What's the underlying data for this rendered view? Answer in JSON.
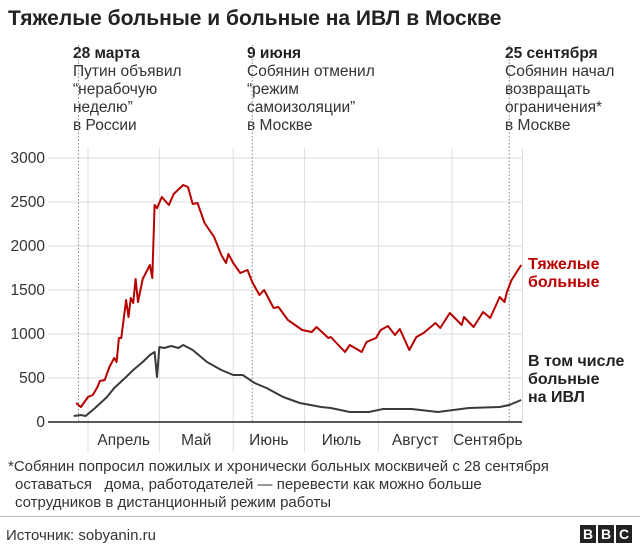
{
  "title": "Тяжелые больные и больные на ИВЛ в Москве",
  "annotations": [
    {
      "date": "28 марта",
      "lines": [
        "Путин объявил",
        "“нерабочую",
        "неделю”",
        "в России"
      ]
    },
    {
      "date": "9 июня",
      "lines": [
        "Собянин отменил",
        "“режим",
        "самоизоляции”",
        "в Москве"
      ]
    },
    {
      "date": "25 сентября",
      "lines": [
        "Собянин начал",
        "возвращать",
        "ограничения*",
        "в Москве"
      ]
    }
  ],
  "chart_data": {
    "type": "line",
    "title": "Тяжелые больные и больные на ИВЛ в Москве",
    "xlabel": "",
    "ylabel": "",
    "x_units": "days since 1 March 2020",
    "ylim": [
      0,
      3000
    ],
    "yticks": [
      "0",
      "500",
      "1000",
      "1500",
      "2000",
      "2500",
      "3000"
    ],
    "ytick_values": [
      0,
      500,
      1000,
      1500,
      2000,
      2500,
      3000
    ],
    "months": [
      {
        "label": "Апрель",
        "start": 31,
        "end": 61
      },
      {
        "label": "Май",
        "start": 61,
        "end": 92
      },
      {
        "label": "Июнь",
        "start": 92,
        "end": 122
      },
      {
        "label": "Июль",
        "start": 122,
        "end": 153
      },
      {
        "label": "Август",
        "start": 153,
        "end": 184
      },
      {
        "label": "Сентябрь",
        "start": 184,
        "end": 214
      }
    ],
    "event_days": [
      27,
      100,
      208
    ],
    "grid": true,
    "series": [
      {
        "name": "Тяжелые больные",
        "color": "#b80000",
        "x": [
          26,
          28,
          31,
          33,
          35,
          36,
          38,
          40,
          42,
          43,
          44,
          45,
          47,
          48,
          49,
          50,
          51,
          52,
          54,
          57,
          58,
          59,
          60,
          62,
          65,
          67,
          71,
          73,
          75,
          77,
          80,
          84,
          87,
          89,
          90,
          92,
          95,
          98,
          100,
          103,
          105,
          109,
          111,
          115,
          118,
          121,
          125,
          127,
          132,
          133,
          139,
          141,
          146,
          148,
          152,
          154,
          157,
          160,
          162,
          166,
          169,
          172,
          177,
          179,
          183,
          188,
          189,
          193,
          197,
          200,
          204,
          206,
          207,
          209,
          213
        ],
        "y": [
          216,
          170,
          284,
          307,
          398,
          466,
          477,
          625,
          727,
          682,
          955,
          955,
          1386,
          1193,
          1409,
          1352,
          1625,
          1364,
          1625,
          1784,
          1636,
          2466,
          2430,
          2557,
          2466,
          2591,
          2693,
          2670,
          2477,
          2489,
          2261,
          2102,
          1898,
          1807,
          1909,
          1807,
          1693,
          1727,
          1591,
          1443,
          1500,
          1295,
          1307,
          1159,
          1102,
          1045,
          1023,
          1080,
          955,
          966,
          795,
          875,
          795,
          909,
          955,
          1045,
          1091,
          989,
          1057,
          818,
          966,
          1011,
          1125,
          1068,
          1239,
          1102,
          1193,
          1080,
          1250,
          1182,
          1420,
          1364,
          1477,
          1614,
          1784
        ]
      },
      {
        "name": "В том числе больные на ИВЛ",
        "color": "#3a3a3a",
        "x": [
          25,
          28,
          30,
          34,
          39,
          42,
          47,
          50,
          54,
          57,
          59,
          60,
          61,
          63,
          66,
          69,
          71,
          75,
          81,
          87,
          92,
          96,
          101,
          106,
          113,
          120,
          129,
          133,
          141,
          149,
          155,
          167,
          178,
          191,
          204,
          208,
          213
        ],
        "y": [
          68,
          80,
          68,
          159,
          284,
          386,
          511,
          591,
          682,
          761,
          795,
          511,
          852,
          841,
          864,
          841,
          875,
          818,
          682,
          591,
          534,
          534,
          443,
          386,
          284,
          216,
          170,
          159,
          114,
          114,
          148,
          148,
          114,
          159,
          170,
          193,
          250
        ]
      }
    ],
    "legend": "right, at line ends"
  },
  "labels": {
    "severe": [
      "Тяжелые",
      "больные"
    ],
    "ventilator": [
      "В том числе",
      "больные",
      "на ИВЛ"
    ]
  },
  "footnote": [
    "*Собянин попросил пожилых и хронически больных москвичей с 28 сентября",
    "оставаться   дома, работодателей — перевести как можно больше",
    "сотрудников в дистанционный режим работы"
  ],
  "source": "Источник: sobyanin.ru",
  "logo": [
    "B",
    "B",
    "C"
  ]
}
